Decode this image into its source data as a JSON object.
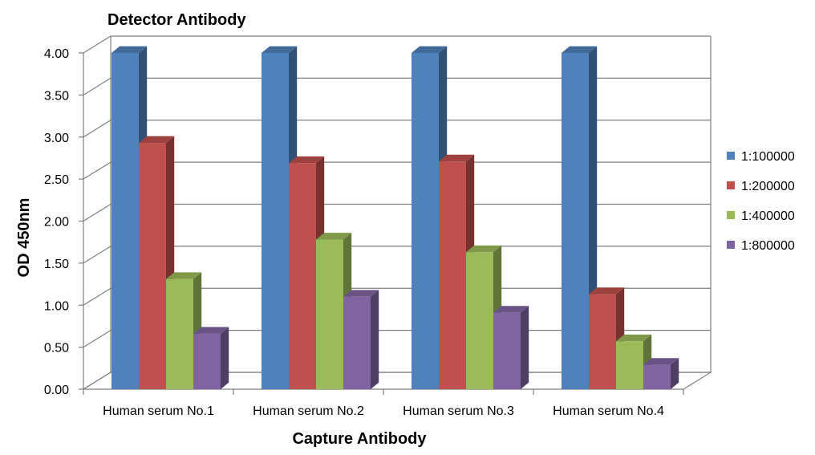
{
  "chart_data": {
    "type": "bar",
    "title": "Detector Antibody",
    "xlabel": "Capture Antibody",
    "ylabel": "OD 450nm",
    "categories": [
      "Human serum No.1",
      "Human serum No.2",
      "Human serum No.3",
      "Human serum No.4"
    ],
    "series": [
      {
        "name": "1:100000",
        "color": "#4f81bd",
        "values": [
          4.0,
          4.0,
          4.0,
          4.0
        ]
      },
      {
        "name": "1:200000",
        "color": "#c0504d",
        "values": [
          2.93,
          2.69,
          2.71,
          1.13
        ]
      },
      {
        "name": "1:400000",
        "color": "#9bbb59",
        "values": [
          1.31,
          1.78,
          1.63,
          0.57
        ]
      },
      {
        "name": "1:800000",
        "color": "#8064a2",
        "values": [
          0.66,
          1.1,
          0.91,
          0.29
        ]
      }
    ],
    "ylim": [
      0,
      4
    ],
    "yticks": [
      "0.00",
      "0.50",
      "1.00",
      "1.50",
      "2.00",
      "2.50",
      "3.00",
      "3.50",
      "4.00"
    ],
    "grid": true,
    "legend_position": "right",
    "style": "3d-clustered-column"
  }
}
